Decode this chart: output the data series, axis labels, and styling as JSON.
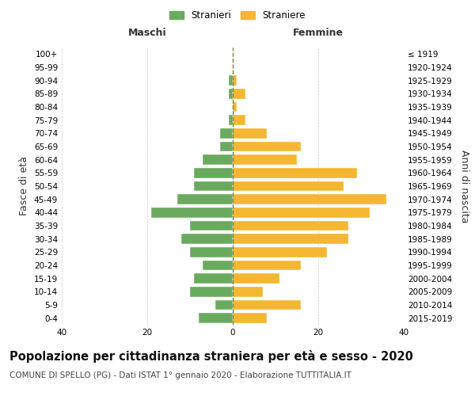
{
  "age_groups": [
    "0-4",
    "5-9",
    "10-14",
    "15-19",
    "20-24",
    "25-29",
    "30-34",
    "35-39",
    "40-44",
    "45-49",
    "50-54",
    "55-59",
    "60-64",
    "65-69",
    "70-74",
    "75-79",
    "80-84",
    "85-89",
    "90-94",
    "95-99",
    "100+"
  ],
  "birth_years": [
    "2015-2019",
    "2010-2014",
    "2005-2009",
    "2000-2004",
    "1995-1999",
    "1990-1994",
    "1985-1989",
    "1980-1984",
    "1975-1979",
    "1970-1974",
    "1965-1969",
    "1960-1964",
    "1955-1959",
    "1950-1954",
    "1945-1949",
    "1940-1944",
    "1935-1939",
    "1930-1934",
    "1925-1929",
    "1920-1924",
    "≤ 1919"
  ],
  "maschi": [
    8,
    4,
    10,
    9,
    7,
    10,
    12,
    10,
    19,
    13,
    9,
    9,
    7,
    3,
    3,
    1,
    0,
    1,
    1,
    0,
    0
  ],
  "femmine": [
    8,
    16,
    7,
    11,
    16,
    22,
    27,
    27,
    32,
    36,
    26,
    29,
    15,
    16,
    8,
    3,
    1,
    3,
    1,
    0,
    0
  ],
  "maschi_color": "#6aaa5e",
  "femmine_color": "#f5b731",
  "background_color": "#ffffff",
  "grid_color": "#cccccc",
  "center_line_color": "#808040",
  "title": "Popolazione per cittadinanza straniera per età e sesso - 2020",
  "subtitle": "COMUNE DI SPELLO (PG) - Dati ISTAT 1° gennaio 2020 - Elaborazione TUTTITALIA.IT",
  "xlabel_left": "Maschi",
  "xlabel_right": "Femmine",
  "ylabel_left": "Fasce di età",
  "ylabel_right": "Anni di nascita",
  "legend_stranieri": "Stranieri",
  "legend_straniere": "Straniere",
  "xlim": 40,
  "title_fontsize": 10.5,
  "subtitle_fontsize": 7.5,
  "tick_fontsize": 7.5,
  "label_fontsize": 9
}
